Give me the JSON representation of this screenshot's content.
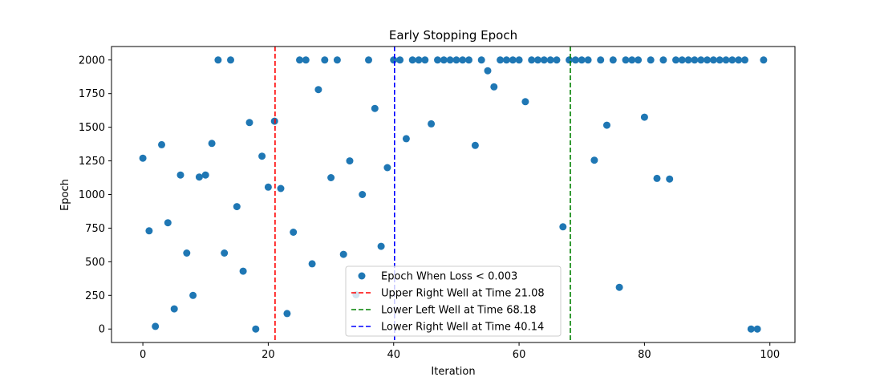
{
  "chart_data": {
    "type": "scatter",
    "title": "Early Stopping Epoch",
    "xlabel": "Iteration",
    "ylabel": "Epoch",
    "xlim": [
      -5,
      104
    ],
    "ylim": [
      -100,
      2100
    ],
    "xticks": [
      0,
      20,
      40,
      60,
      80,
      100
    ],
    "yticks": [
      0,
      250,
      500,
      750,
      1000,
      1250,
      1500,
      1750,
      2000
    ],
    "grid": false,
    "legend_position": "lower-center",
    "series": [
      {
        "name": "Epoch When Loss < 0.003",
        "color": "#1f77b4",
        "points": [
          [
            0,
            1270
          ],
          [
            1,
            730
          ],
          [
            2,
            20
          ],
          [
            3,
            1370
          ],
          [
            4,
            790
          ],
          [
            5,
            150
          ],
          [
            6,
            1145
          ],
          [
            7,
            565
          ],
          [
            8,
            250
          ],
          [
            9,
            1130
          ],
          [
            10,
            1145
          ],
          [
            11,
            1380
          ],
          [
            12,
            2000
          ],
          [
            13,
            565
          ],
          [
            14,
            2000
          ],
          [
            15,
            910
          ],
          [
            16,
            430
          ],
          [
            17,
            1535
          ],
          [
            18,
            0
          ],
          [
            19,
            1285
          ],
          [
            20,
            1055
          ],
          [
            21,
            1545
          ],
          [
            22,
            1045
          ],
          [
            23,
            115
          ],
          [
            24,
            720
          ],
          [
            25,
            2000
          ],
          [
            26,
            2000
          ],
          [
            27,
            485
          ],
          [
            28,
            1780
          ],
          [
            29,
            2000
          ],
          [
            30,
            1125
          ],
          [
            31,
            2000
          ],
          [
            32,
            555
          ],
          [
            33,
            1250
          ],
          [
            34,
            255
          ],
          [
            35,
            1000
          ],
          [
            36,
            2000
          ],
          [
            37,
            1640
          ],
          [
            38,
            615
          ],
          [
            39,
            1200
          ],
          [
            40,
            2000
          ],
          [
            41,
            2000
          ],
          [
            42,
            1415
          ],
          [
            43,
            2000
          ],
          [
            44,
            2000
          ],
          [
            45,
            2000
          ],
          [
            46,
            1525
          ],
          [
            47,
            2000
          ],
          [
            48,
            2000
          ],
          [
            49,
            2000
          ],
          [
            50,
            2000
          ],
          [
            51,
            2000
          ],
          [
            52,
            2000
          ],
          [
            53,
            1365
          ],
          [
            54,
            2000
          ],
          [
            55,
            1920
          ],
          [
            56,
            1800
          ],
          [
            57,
            2000
          ],
          [
            58,
            2000
          ],
          [
            59,
            2000
          ],
          [
            60,
            2000
          ],
          [
            61,
            1690
          ],
          [
            62,
            2000
          ],
          [
            63,
            2000
          ],
          [
            64,
            2000
          ],
          [
            65,
            2000
          ],
          [
            66,
            2000
          ],
          [
            67,
            760
          ],
          [
            68,
            2000
          ],
          [
            69,
            2000
          ],
          [
            70,
            2000
          ],
          [
            71,
            2000
          ],
          [
            72,
            1255
          ],
          [
            73,
            2000
          ],
          [
            74,
            1515
          ],
          [
            75,
            2000
          ],
          [
            76,
            310
          ],
          [
            77,
            2000
          ],
          [
            78,
            2000
          ],
          [
            79,
            2000
          ],
          [
            80,
            1575
          ],
          [
            81,
            2000
          ],
          [
            82,
            1120
          ],
          [
            83,
            2000
          ],
          [
            84,
            1115
          ],
          [
            85,
            2000
          ],
          [
            86,
            2000
          ],
          [
            87,
            2000
          ],
          [
            88,
            2000
          ],
          [
            89,
            2000
          ],
          [
            90,
            2000
          ],
          [
            91,
            2000
          ],
          [
            92,
            2000
          ],
          [
            93,
            2000
          ],
          [
            94,
            2000
          ],
          [
            95,
            2000
          ],
          [
            96,
            2000
          ],
          [
            97,
            0
          ],
          [
            98,
            0
          ],
          [
            99,
            2000
          ]
        ]
      }
    ],
    "vlines": [
      {
        "name": "Upper Right Well at Time 21.08",
        "x": 21.08,
        "color": "#ff0000"
      },
      {
        "name": "Lower Left Well at Time 68.18",
        "x": 68.18,
        "color": "#008000"
      },
      {
        "name": "Lower Right Well at Time 40.14",
        "x": 40.14,
        "color": "#0000ff"
      }
    ]
  }
}
